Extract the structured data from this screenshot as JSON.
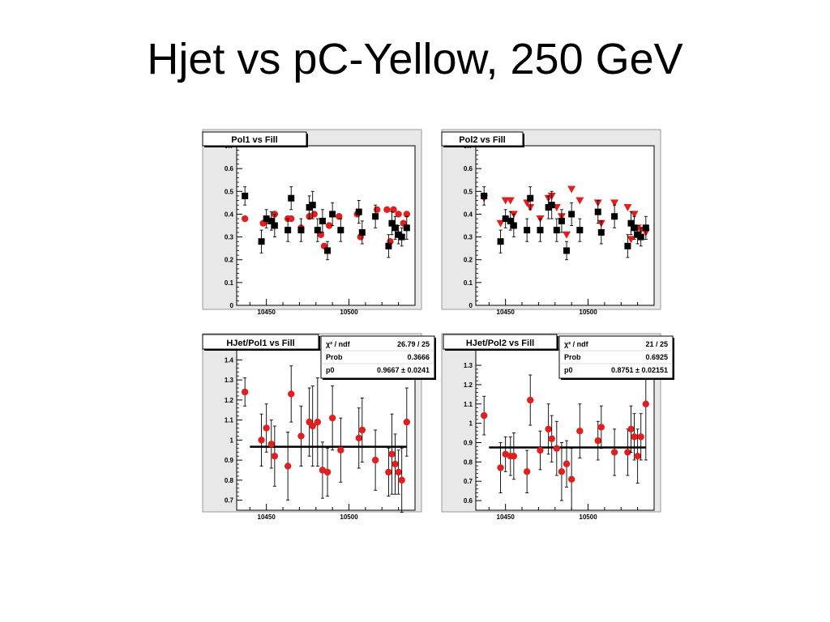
{
  "slide": {
    "title": "Hjet vs pC-Yellow, 250 GeV"
  },
  "chart_data": [
    {
      "type": "scatter",
      "title": "Pol1 vs Fill",
      "xlim": [
        10432,
        10540
      ],
      "ylim": [
        0,
        0.7
      ],
      "xticks": [
        10450,
        10500
      ],
      "yticks": [
        0,
        0.1,
        0.2,
        0.3,
        0.4,
        0.5,
        0.6,
        0.7
      ],
      "series": [
        {
          "marker": "circle",
          "color": "#e02020",
          "x": [
            10437,
            10448,
            10451,
            10455,
            10463,
            10465,
            10471,
            10476,
            10479,
            10483,
            10485,
            10488,
            10494,
            10505,
            10507,
            10517,
            10523,
            10525,
            10527,
            10530,
            10533,
            10535
          ],
          "y": [
            0.38,
            0.36,
            0.37,
            0.4,
            0.38,
            0.38,
            0.34,
            0.39,
            0.4,
            0.31,
            0.26,
            0.35,
            0.39,
            0.4,
            0.3,
            0.42,
            0.42,
            0.28,
            0.42,
            0.4,
            0.36,
            0.4
          ]
        },
        {
          "marker": "square",
          "color": "#000000",
          "x": [
            10437,
            10447,
            10450,
            10453,
            10455,
            10463,
            10465,
            10471,
            10476,
            10478,
            10481,
            10484,
            10487,
            10490,
            10495,
            10506,
            10508,
            10516,
            10524,
            10526,
            10528,
            10530,
            10532,
            10535
          ],
          "y": [
            0.48,
            0.28,
            0.38,
            0.37,
            0.35,
            0.33,
            0.47,
            0.33,
            0.43,
            0.44,
            0.33,
            0.37,
            0.24,
            0.4,
            0.33,
            0.41,
            0.32,
            0.39,
            0.26,
            0.36,
            0.34,
            0.31,
            0.3,
            0.34
          ],
          "err": [
            0.04,
            0.05,
            0.04,
            0.04,
            0.05,
            0.05,
            0.05,
            0.05,
            0.05,
            0.06,
            0.05,
            0.05,
            0.04,
            0.05,
            0.05,
            0.05,
            0.05,
            0.05,
            0.05,
            0.05,
            0.05,
            0.04,
            0.04,
            0.05
          ]
        }
      ]
    },
    {
      "type": "scatter",
      "title": "Pol2 vs Fill",
      "xlim": [
        10432,
        10540
      ],
      "ylim": [
        0,
        0.7
      ],
      "xticks": [
        10450,
        10500
      ],
      "yticks": [
        0,
        0.1,
        0.2,
        0.3,
        0.4,
        0.5,
        0.6,
        0.7
      ],
      "series": [
        {
          "marker": "triangle-down",
          "color": "#e02020",
          "x": [
            10437,
            10447,
            10450,
            10453,
            10455,
            10463,
            10465,
            10471,
            10476,
            10478,
            10481,
            10484,
            10487,
            10490,
            10495,
            10506,
            10508,
            10516,
            10524,
            10526,
            10528,
            10530,
            10532,
            10535
          ],
          "y": [
            0.47,
            0.36,
            0.46,
            0.46,
            0.4,
            0.45,
            0.43,
            0.38,
            0.47,
            0.48,
            0.43,
            0.39,
            0.31,
            0.51,
            0.46,
            0.45,
            0.36,
            0.45,
            0.43,
            0.29,
            0.4,
            0.34,
            0.33,
            0.32
          ]
        },
        {
          "marker": "square",
          "color": "#000000",
          "x": [
            10437,
            10447,
            10450,
            10453,
            10455,
            10463,
            10465,
            10471,
            10476,
            10478,
            10481,
            10484,
            10487,
            10490,
            10495,
            10506,
            10508,
            10516,
            10524,
            10526,
            10528,
            10530,
            10532,
            10535
          ],
          "y": [
            0.48,
            0.28,
            0.38,
            0.37,
            0.35,
            0.33,
            0.47,
            0.33,
            0.43,
            0.44,
            0.33,
            0.37,
            0.24,
            0.4,
            0.33,
            0.41,
            0.32,
            0.39,
            0.26,
            0.36,
            0.34,
            0.31,
            0.3,
            0.34
          ],
          "err": [
            0.04,
            0.05,
            0.04,
            0.04,
            0.05,
            0.05,
            0.05,
            0.05,
            0.05,
            0.06,
            0.05,
            0.05,
            0.04,
            0.05,
            0.05,
            0.05,
            0.05,
            0.05,
            0.05,
            0.05,
            0.05,
            0.04,
            0.04,
            0.05
          ]
        }
      ]
    },
    {
      "type": "scatter",
      "title": "HJet/Pol1 vs Fill",
      "xlim": [
        10432,
        10540
      ],
      "ylim": [
        0.65,
        1.45
      ],
      "xticks": [
        10450,
        10500
      ],
      "yticks": [
        0.7,
        0.8,
        0.9,
        1,
        1.1,
        1.2,
        1.3,
        1.4
      ],
      "stats": {
        "chi2_label": "χ² / ndf",
        "chi2_value": "26.79 / 25",
        "prob_label": "Prob",
        "prob_value": "0.3666",
        "p0_label": "p0",
        "p0_value": "0.9667 ± 0.0241"
      },
      "fit": {
        "y": 0.9667,
        "x": [
          10440,
          10535
        ]
      },
      "series": [
        {
          "marker": "circle",
          "color": "#e02020",
          "x": [
            10437,
            10447,
            10450,
            10453,
            10455,
            10463,
            10465,
            10471,
            10476,
            10478,
            10481,
            10484,
            10487,
            10490,
            10495,
            10506,
            10508,
            10516,
            10524,
            10526,
            10528,
            10530,
            10532,
            10535
          ],
          "y": [
            1.24,
            1.0,
            1.06,
            0.98,
            0.92,
            0.87,
            1.23,
            1.02,
            1.09,
            1.07,
            1.09,
            0.85,
            0.84,
            1.11,
            0.95,
            1.01,
            1.05,
            0.9,
            0.84,
            0.93,
            0.88,
            0.84,
            0.8,
            1.09
          ],
          "err": [
            0.07,
            0.13,
            0.12,
            0.12,
            0.15,
            0.17,
            0.14,
            0.15,
            0.17,
            0.2,
            0.22,
            0.14,
            0.12,
            0.16,
            0.16,
            0.15,
            0.16,
            0.15,
            0.12,
            0.2,
            0.15,
            0.11,
            0.16,
            0.17
          ]
        }
      ]
    },
    {
      "type": "scatter",
      "title": "HJet/Pol2 vs Fill",
      "xlim": [
        10432,
        10540
      ],
      "ylim": [
        0.55,
        1.38
      ],
      "xticks": [
        10450,
        10500
      ],
      "yticks": [
        0.6,
        0.7,
        0.8,
        0.9,
        1,
        1.1,
        1.2,
        1.3
      ],
      "stats": {
        "chi2_label": "χ² / ndf",
        "chi2_value": "21 / 25",
        "prob_label": "Prob",
        "prob_value": "0.6925",
        "p0_label": "p0",
        "p0_value": "0.8751 ± 0.02151"
      },
      "fit": {
        "y": 0.8751,
        "x": [
          10440,
          10535
        ]
      },
      "series": [
        {
          "marker": "circle",
          "color": "#e02020",
          "x": [
            10437,
            10447,
            10450,
            10453,
            10455,
            10463,
            10465,
            10471,
            10476,
            10478,
            10481,
            10484,
            10487,
            10490,
            10495,
            10506,
            10508,
            10516,
            10524,
            10526,
            10528,
            10530,
            10532,
            10535
          ],
          "y": [
            1.04,
            0.77,
            0.84,
            0.83,
            0.83,
            0.75,
            1.12,
            0.86,
            0.97,
            0.92,
            0.87,
            0.75,
            0.79,
            0.71,
            0.96,
            0.91,
            0.98,
            0.85,
            0.85,
            0.97,
            0.93,
            0.83,
            0.93,
            1.1
          ],
          "err": [
            0.1,
            0.13,
            0.09,
            0.1,
            0.12,
            0.11,
            0.13,
            0.1,
            0.13,
            0.12,
            0.14,
            0.15,
            0.12,
            0.16,
            0.14,
            0.1,
            0.11,
            0.12,
            0.12,
            0.12,
            0.12,
            0.14,
            0.12,
            0.29
          ]
        }
      ]
    }
  ]
}
